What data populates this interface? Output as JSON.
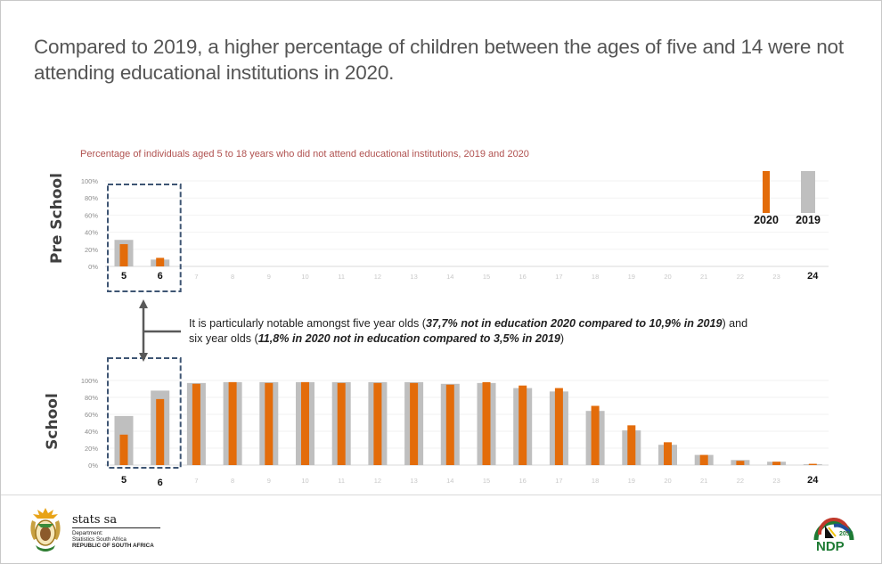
{
  "slide": {
    "title": "Compared to 2019, a higher percentage of children between the ages of five and 14 were not attending educational institutions in 2020.",
    "note_prefix": "It is particularly notable amongst five year olds (",
    "note_bold_1": "37,7% not in education 2020 compared to 10,9% in 2019",
    "note_mid": ") and six year olds (",
    "note_bold_2": "11,8% in 2020 not in education compared to 3,5% in 2019",
    "note_suffix": ")"
  },
  "footer": {
    "org_name": "stats sa",
    "dept_line_1": "Department:",
    "dept_line_2": "Statistics South Africa",
    "dept_line_3": "REPUBLIC OF SOUTH AFRICA",
    "right_logo_text": "NDP",
    "right_logo_year": "2030"
  },
  "colors": {
    "series_2020": "#E36C0A",
    "series_2019": "#BFBFBF",
    "subtitle": "#B0514F",
    "highlight_box": "#3E5573"
  },
  "chart_data": [
    {
      "type": "bar",
      "panel_label": "Pre School",
      "title": "Percentage of individuals aged 5 to 18 years who did not attend educational institutions, 2019 and 2020",
      "xlabel": "",
      "ylabel": "",
      "ylim": [
        0,
        100
      ],
      "yticks": [
        "0%",
        "20%",
        "40%",
        "60%",
        "80%",
        "100%"
      ],
      "grid": true,
      "categories": [
        "5",
        "6",
        "7",
        "8",
        "9",
        "10",
        "11",
        "12",
        "13",
        "14",
        "15",
        "16",
        "17",
        "18",
        "19",
        "20",
        "21",
        "22",
        "23",
        "24"
      ],
      "emphasized_categories": [
        "5",
        "6",
        "24"
      ],
      "highlighted_range": [
        "5",
        "6"
      ],
      "series": [
        {
          "name": "2019",
          "values": [
            31,
            8,
            null,
            null,
            null,
            null,
            null,
            null,
            null,
            null,
            null,
            null,
            null,
            null,
            null,
            null,
            null,
            null,
            null,
            null
          ]
        },
        {
          "name": "2020",
          "values": [
            26,
            10,
            null,
            null,
            null,
            null,
            null,
            null,
            null,
            null,
            null,
            null,
            null,
            null,
            null,
            null,
            null,
            null,
            null,
            null
          ]
        }
      ],
      "legend": {
        "placement": "top-right",
        "entries": [
          "2020",
          "2019"
        ]
      }
    },
    {
      "type": "bar",
      "panel_label": "School",
      "title": "",
      "xlabel": "",
      "ylabel": "",
      "ylim": [
        0,
        100
      ],
      "yticks": [
        "0%",
        "20%",
        "40%",
        "60%",
        "80%",
        "100%"
      ],
      "grid": true,
      "categories": [
        "5",
        "6",
        "7",
        "8",
        "9",
        "10",
        "11",
        "12",
        "13",
        "14",
        "15",
        "16",
        "17",
        "18",
        "19",
        "20",
        "21",
        "22",
        "23",
        "24"
      ],
      "emphasized_categories": [
        "5",
        "6",
        "24"
      ],
      "highlighted_range": [
        "5",
        "6"
      ],
      "series": [
        {
          "name": "2019",
          "values": [
            58,
            88,
            97,
            98,
            98,
            98,
            98,
            98,
            98,
            96,
            97,
            91,
            87,
            64,
            41,
            24,
            12,
            6,
            4,
            1
          ]
        },
        {
          "name": "2020",
          "values": [
            36,
            78,
            96,
            98,
            97,
            98,
            97,
            97,
            97,
            95,
            98,
            94,
            91,
            70,
            47,
            27,
            12,
            5,
            4,
            1.5
          ]
        }
      ]
    }
  ]
}
